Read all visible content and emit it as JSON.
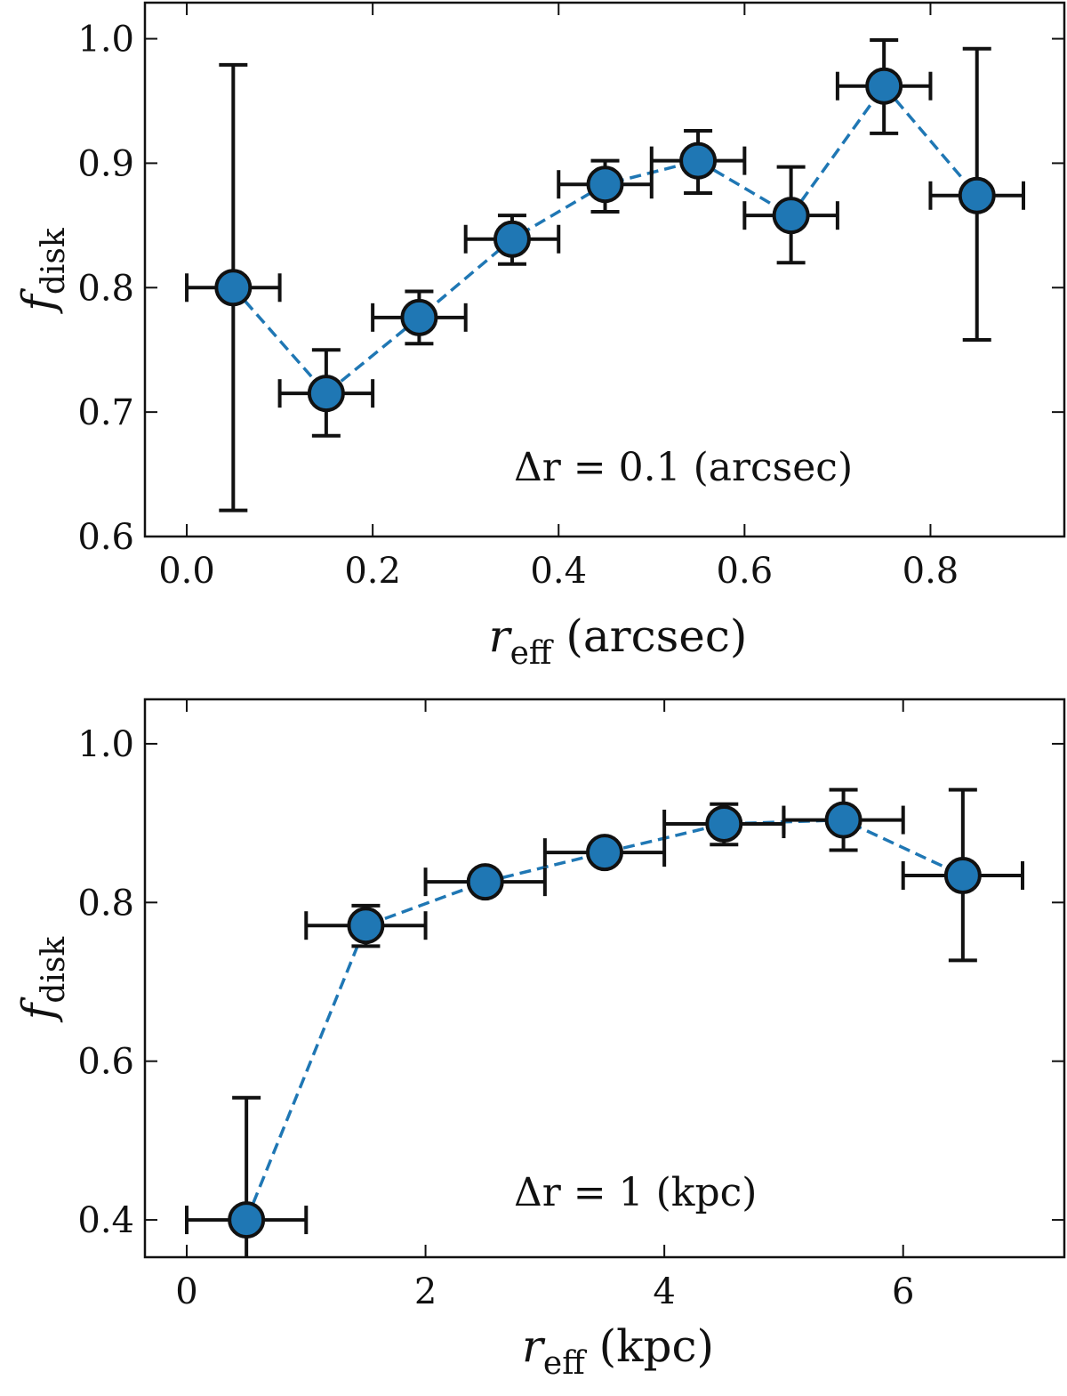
{
  "chart_data": [
    {
      "type": "scatter",
      "title": "",
      "xlabel": "r_eff (arcsec)",
      "xlabel_main": "r",
      "xlabel_sub": "eff",
      "xlabel_unit": "(arcsec)",
      "ylabel_main": "f",
      "ylabel_sub": "disk",
      "annotation": "Δr = 0.1 (arcsec)",
      "annotation_parts": {
        "delta": "Δ",
        "var": "r",
        "rest": " = 0.1 (arcsec)"
      },
      "xlim": [
        -0.045,
        0.944
      ],
      "ylim": [
        0.6,
        1.029
      ],
      "xticks": [
        0.0,
        0.2,
        0.4,
        0.6,
        0.8
      ],
      "xtick_labels": [
        "0.0",
        "0.2",
        "0.4",
        "0.6",
        "0.8"
      ],
      "yticks": [
        0.6,
        0.7,
        0.8,
        0.9,
        1.0
      ],
      "ytick_labels": [
        "0.6",
        "0.7",
        "0.8",
        "0.9",
        "1.0"
      ],
      "grid": false,
      "marker_color": "#1f77b4",
      "line_style": "dashed",
      "x": [
        0.05,
        0.15,
        0.25,
        0.35,
        0.45,
        0.55,
        0.65,
        0.75,
        0.85
      ],
      "y": [
        0.8,
        0.715,
        0.776,
        0.839,
        0.883,
        0.902,
        0.858,
        0.962,
        0.874
      ],
      "y_err_low": [
        0.621,
        0.681,
        0.755,
        0.819,
        0.861,
        0.876,
        0.82,
        0.924,
        0.758
      ],
      "y_err_high": [
        0.979,
        0.75,
        0.797,
        0.858,
        0.902,
        0.926,
        0.897,
        0.999,
        0.992
      ],
      "x_err": 0.05
    },
    {
      "type": "scatter",
      "title": "",
      "xlabel": "r_eff (kpc)",
      "xlabel_main": "r",
      "xlabel_sub": "eff",
      "xlabel_unit": "(kpc)",
      "ylabel_main": "f",
      "ylabel_sub": "disk",
      "annotation": "Δr = 1 (kpc)",
      "annotation_parts": {
        "delta": "Δ",
        "var": "r",
        "rest": " = 1 (kpc)"
      },
      "xlim": [
        -0.35,
        7.35
      ],
      "ylim": [
        0.353,
        1.056
      ],
      "xticks": [
        0,
        2,
        4,
        6
      ],
      "xtick_labels": [
        "0",
        "2",
        "4",
        "6"
      ],
      "yticks": [
        0.4,
        0.6,
        0.8,
        1.0
      ],
      "ytick_labels": [
        "0.4",
        "0.6",
        "0.8",
        "1.0"
      ],
      "grid": false,
      "marker_color": "#1f77b4",
      "line_style": "dashed",
      "x": [
        0.5,
        1.5,
        2.5,
        3.5,
        4.5,
        5.5,
        6.5
      ],
      "y": [
        0.4,
        0.771,
        0.826,
        0.863,
        0.899,
        0.904,
        0.834
      ],
      "y_err_low": [
        0.246,
        0.745,
        0.82,
        0.857,
        0.873,
        0.866,
        0.727
      ],
      "y_err_high": [
        0.554,
        0.796,
        0.832,
        0.869,
        0.924,
        0.942,
        0.942
      ],
      "x_err": 0.5
    }
  ]
}
